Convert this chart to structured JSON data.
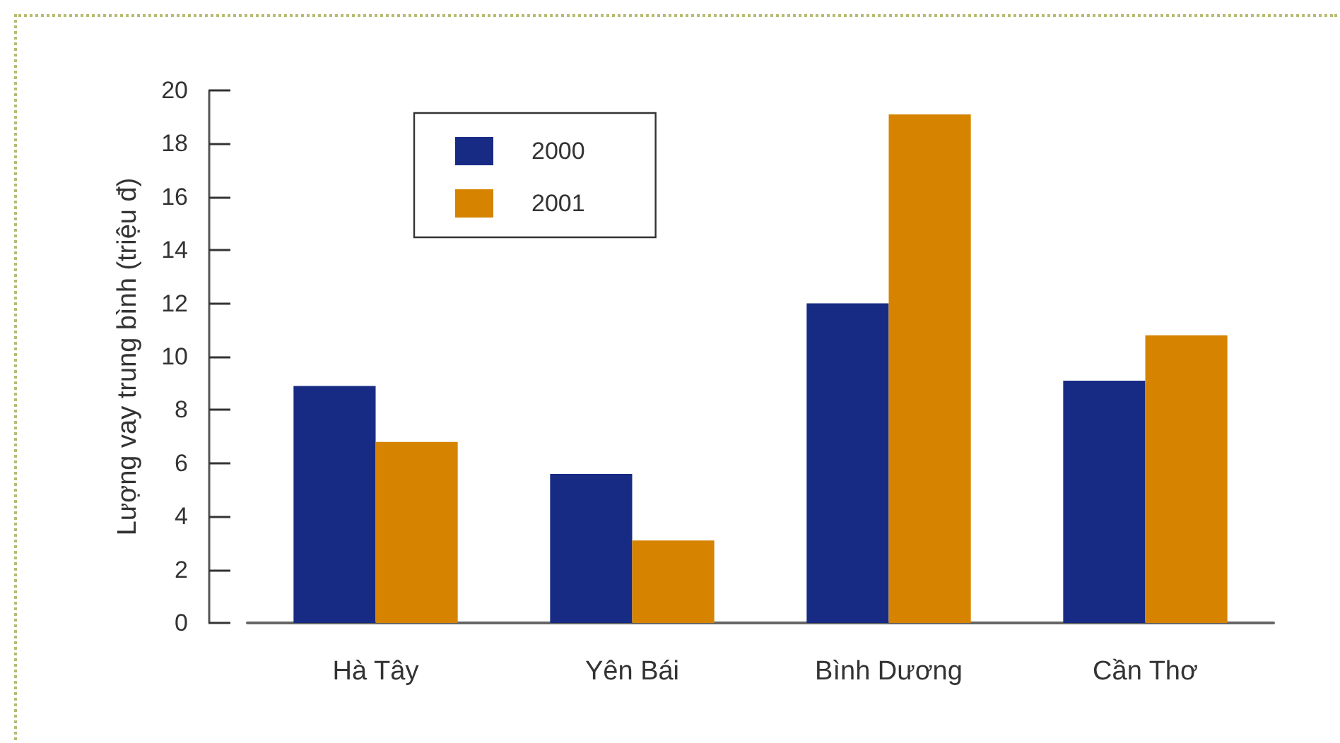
{
  "chart_data": {
    "type": "bar",
    "ylabel": "Lượng vay trung bình (triệu đ)",
    "categories": [
      "Hà Tây",
      "Yên Bái",
      "Bình Dương",
      "Cần Thơ"
    ],
    "series": [
      {
        "name": "2000",
        "color": "#172b85",
        "values": [
          8.9,
          5.6,
          12.0,
          9.1
        ]
      },
      {
        "name": "2001",
        "color": "#d68400",
        "values": [
          6.8,
          3.1,
          19.1,
          10.8
        ]
      }
    ],
    "ylim": [
      0,
      20
    ],
    "yticks": [
      0,
      2,
      4,
      6,
      8,
      10,
      12,
      14,
      16,
      18,
      20
    ],
    "grid": false,
    "legend": "top left"
  }
}
